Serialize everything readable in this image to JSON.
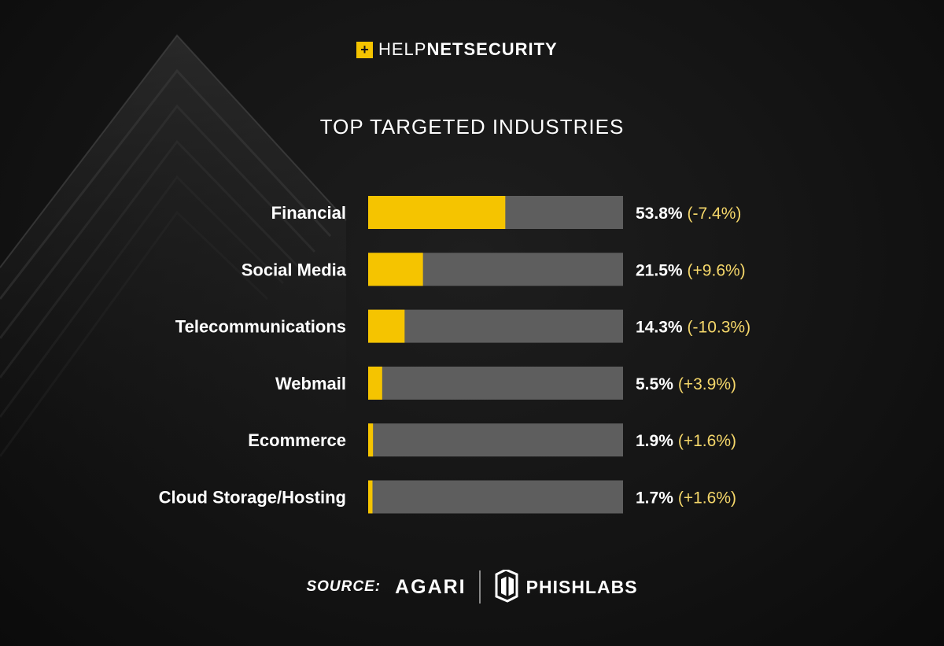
{
  "brand": {
    "mark": "+",
    "name_light": "HELP",
    "name_bold_1": "NET",
    "name_bold_2": "SECURITY"
  },
  "colors": {
    "accent": "#f5c400",
    "bar_track": "#5e5e5e",
    "change_text": "#f5d76a"
  },
  "chart_data": {
    "type": "bar",
    "orientation": "horizontal",
    "title": "TOP TARGETED INDUSTRIES",
    "xlim": [
      0,
      100
    ],
    "grid": false,
    "legend": "none",
    "categories": [
      "Financial",
      "Social Media",
      "Telecommunications",
      "Webmail",
      "Ecommerce",
      "Cloud Storage/Hosting"
    ],
    "values": [
      53.8,
      21.5,
      14.3,
      5.5,
      1.9,
      1.7
    ],
    "value_labels": [
      "53.8%",
      "21.5%",
      "14.3%",
      "5.5%",
      "1.9%",
      "1.7%"
    ],
    "change_labels": [
      "(-7.4%)",
      "(+9.6%)",
      "(-10.3%)",
      "(+3.9%)",
      "(+1.6%)",
      "(+1.6%)"
    ]
  },
  "source": {
    "label": "SOURCE:",
    "partner_1": "AGARI",
    "partner_2": "PHISHLABS",
    "partner_2_icon": "phishlabs-logo-icon"
  }
}
